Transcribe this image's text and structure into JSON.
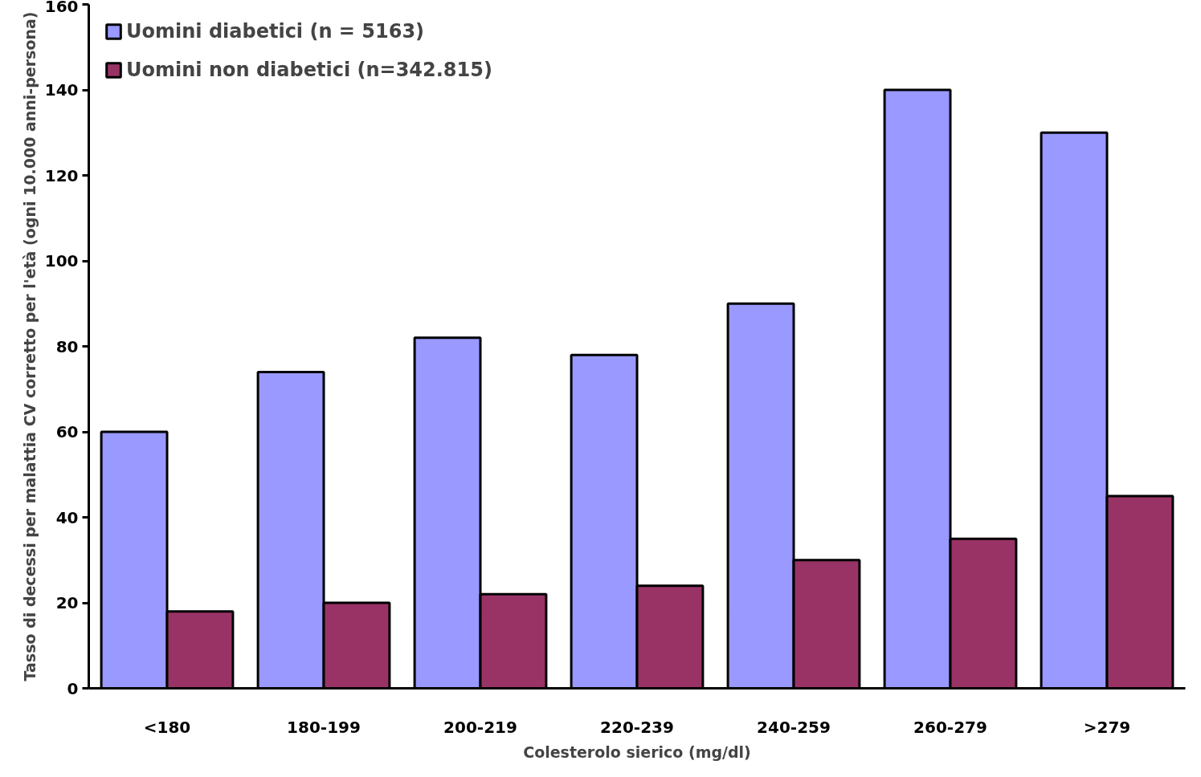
{
  "chart_data": {
    "type": "bar",
    "xlabel": "Colesterolo sierico (mg/dl)",
    "ylabel": "Tasso di decessi per malattia CV corretto per l'età (ogni 10.000 anni-persona)",
    "categories": [
      "<180",
      "180-199",
      "200-219",
      "220-239",
      "240-259",
      "260-279",
      ">279"
    ],
    "series": [
      {
        "name": "Uomini diabetici (n = 5163)",
        "color": "#9999ff",
        "values": [
          60,
          74,
          82,
          78,
          90,
          140,
          130
        ]
      },
      {
        "name": "Uomini non diabetici (n=342.815)",
        "color": "#993366",
        "values": [
          18,
          20,
          22,
          24,
          30,
          35,
          45
        ]
      }
    ],
    "ylim": [
      0,
      160
    ],
    "yticks": [
      0,
      20,
      40,
      60,
      80,
      100,
      120,
      140,
      160
    ],
    "grid": false,
    "legend": "top left"
  }
}
